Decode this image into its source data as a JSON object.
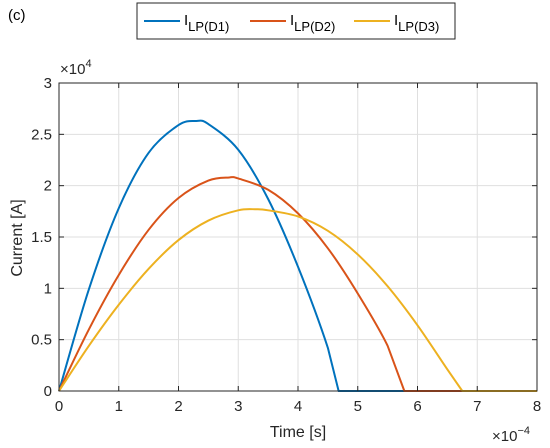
{
  "panel_label": "(c)",
  "chart_data": {
    "type": "line",
    "xlabel": "Time  [s]",
    "ylabel": "Current [A]",
    "x_multiplier": "×10",
    "x_multiplier_exp": "−4",
    "y_multiplier": "×10",
    "y_multiplier_exp": "4",
    "xlim": [
      0,
      8
    ],
    "ylim": [
      0,
      3
    ],
    "xticks": [
      0,
      1,
      2,
      3,
      4,
      5,
      6,
      7,
      8
    ],
    "xtick_labels": [
      "0",
      "1",
      "2",
      "3",
      "4",
      "5",
      "6",
      "7",
      "8"
    ],
    "yticks": [
      0,
      0.5,
      1,
      1.5,
      2,
      2.5,
      3
    ],
    "ytick_labels": [
      "0",
      "0.5",
      "1",
      "1.5",
      "2",
      "2.5",
      "3"
    ],
    "grid": true,
    "legend_placement": "top-center, outside",
    "series": [
      {
        "label_main": "I",
        "label_sub": "LP(D1)",
        "color": "#0072BD",
        "x": [
          0,
          0.5,
          1,
          1.5,
          2,
          2.3,
          2.5,
          3,
          3.5,
          4,
          4.5,
          4.68,
          5,
          6,
          7,
          8
        ],
        "values": [
          0,
          0.99,
          1.78,
          2.32,
          2.59,
          2.63,
          2.6,
          2.35,
          1.87,
          1.21,
          0.42,
          0,
          0,
          0,
          0,
          0
        ]
      },
      {
        "label_main": "I",
        "label_sub": "LP(D2)",
        "color": "#D95319",
        "x": [
          0,
          0.5,
          1,
          1.5,
          2,
          2.5,
          2.85,
          3,
          3.5,
          4,
          4.5,
          5,
          5.5,
          5.78,
          6,
          7,
          8
        ],
        "values": [
          0,
          0.6,
          1.13,
          1.57,
          1.88,
          2.05,
          2.08,
          2.07,
          1.96,
          1.73,
          1.39,
          0.95,
          0.44,
          0,
          0,
          0,
          0
        ]
      },
      {
        "label_main": "I",
        "label_sub": "LP(D3)",
        "color": "#EDB120",
        "x": [
          0,
          0.5,
          1,
          1.5,
          2,
          2.5,
          3,
          3.3,
          3.5,
          4,
          4.5,
          5,
          5.5,
          6,
          6.5,
          6.75,
          7,
          8
        ],
        "values": [
          0,
          0.44,
          0.84,
          1.19,
          1.47,
          1.66,
          1.76,
          1.77,
          1.76,
          1.7,
          1.56,
          1.33,
          1.02,
          0.64,
          0.21,
          0,
          0,
          0
        ]
      }
    ]
  }
}
